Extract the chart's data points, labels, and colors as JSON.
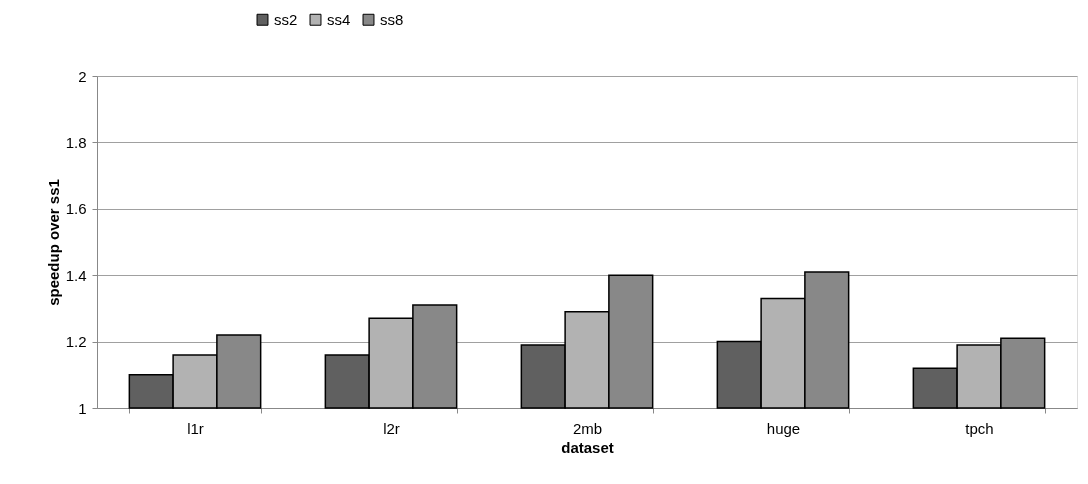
{
  "chart_data": {
    "type": "bar",
    "xlabel": "dataset",
    "ylabel": "speedup over ss1",
    "categories": [
      "l1r",
      "l2r",
      "2mb",
      "huge",
      "tpch"
    ],
    "series": [
      {
        "name": "ss2",
        "color": "#606060",
        "values": [
          1.1,
          1.16,
          1.19,
          1.2,
          1.12
        ]
      },
      {
        "name": "ss4",
        "color": "#b2b2b2",
        "values": [
          1.16,
          1.27,
          1.29,
          1.33,
          1.19
        ]
      },
      {
        "name": "ss8",
        "color": "#888888",
        "values": [
          1.22,
          1.31,
          1.4,
          1.41,
          1.21
        ]
      }
    ],
    "ylim": [
      1,
      2
    ],
    "yticks": [
      1,
      1.2,
      1.4,
      1.6,
      1.8,
      2
    ],
    "grid": "y",
    "legend": "top"
  }
}
